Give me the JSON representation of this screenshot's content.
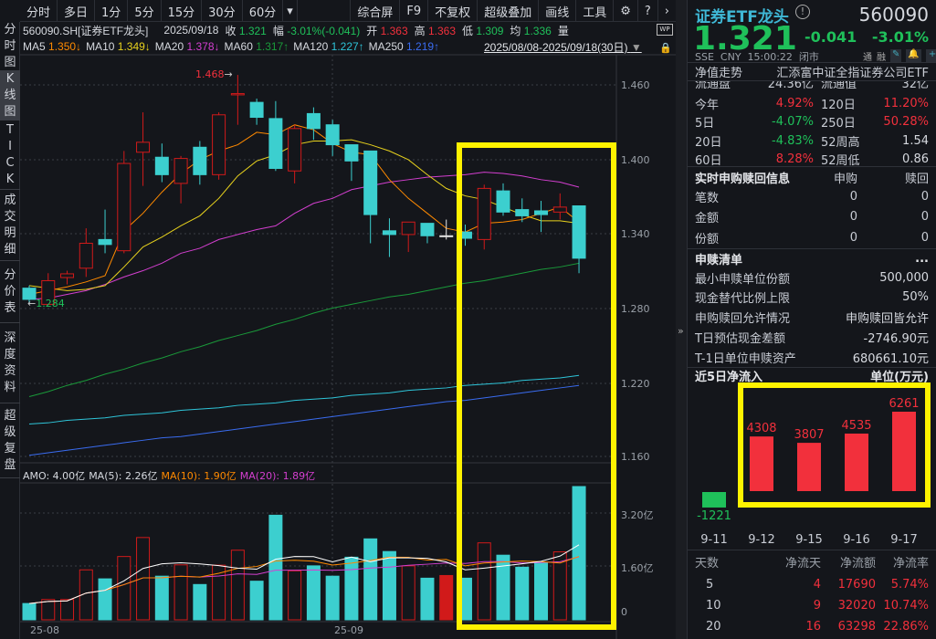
{
  "toolbar": {
    "left": [
      "分时",
      "多日",
      "1分",
      "5分",
      "15分",
      "30分",
      "60分"
    ],
    "more": "▾",
    "right": [
      "综合屏",
      "F9",
      "不复权",
      "超级叠加",
      "画线",
      "工具"
    ]
  },
  "side_tabs": [
    [
      "分",
      "时",
      "图"
    ],
    [
      "K",
      "线",
      "图"
    ],
    [
      "T",
      "I",
      "C",
      "K"
    ],
    [
      "成",
      "交",
      "明",
      "细"
    ],
    [
      "分",
      "价",
      "表"
    ],
    [
      "深",
      "度",
      "资",
      "料"
    ],
    [
      "超",
      "级",
      "复",
      "盘"
    ]
  ],
  "info": {
    "code": "560090.SH[证券ETF龙头]",
    "date": "2025/09/18",
    "close_label": "收",
    "close": "1.321",
    "chg_label": "幅",
    "chg": "-3.01%(-0.041)",
    "open_label": "开",
    "open": "1.363",
    "high_label": "高",
    "high": "1.363",
    "low_label": "低",
    "low": "1.309",
    "avg_label": "均",
    "avg": "1.336",
    "vol_label": "量"
  },
  "ma_legend": [
    {
      "label": "MA5",
      "value": "1.350↓",
      "color": "#ff8a00"
    },
    {
      "label": "MA10",
      "value": "1.349↓",
      "color": "#e8d21d"
    },
    {
      "label": "MA20",
      "value": "1.378↓",
      "color": "#d43fd0"
    },
    {
      "label": "MA60",
      "value": "1.317↑",
      "color": "#1a9a3a"
    },
    {
      "label": "MA120",
      "value": "1.227↑",
      "color": "#2ec4d8"
    },
    {
      "label": "MA250",
      "value": "1.219↑",
      "color": "#3a6cf0"
    }
  ],
  "range": "2025/08/08-2025/09/18(30日)",
  "price_axis": [
    "1.460",
    "1.400",
    "1.340",
    "1.280",
    "1.220",
    "1.160"
  ],
  "vol_axis": [
    "3.20亿",
    "1.60亿",
    "0"
  ],
  "date_axis": [
    "25-08",
    "25-09"
  ],
  "vol_legend": {
    "amo": "AMO: 4.00亿",
    "ma5": "MA(5): 2.26亿",
    "ma10": "MA(10): 1.90亿",
    "ma20": "MA(20): 1.89亿"
  },
  "annotations": {
    "high": "1.468",
    "low": "1.284"
  },
  "colors": {
    "up": "#d11a1a",
    "down": "#3ccfcf",
    "flat": "#e6e6e6",
    "highlight": "#fff200",
    "green": "#1fc05a",
    "red": "#f2303c"
  },
  "chart_data": {
    "type": "candlestick",
    "ohlc": [
      [
        1.297,
        1.288,
        1.299,
        1.284
      ],
      [
        1.284,
        1.303,
        1.309,
        1.284
      ],
      [
        1.3055,
        1.3085,
        1.311,
        1.3
      ],
      [
        1.313,
        1.333,
        1.345,
        1.306
      ],
      [
        1.336,
        1.332,
        1.36,
        1.325
      ],
      [
        1.327,
        1.397,
        1.407,
        1.325
      ],
      [
        1.406,
        1.414,
        1.438,
        1.379
      ],
      [
        1.402,
        1.388,
        1.413,
        1.382
      ],
      [
        1.381,
        1.401,
        1.403,
        1.365
      ],
      [
        1.41,
        1.388,
        1.415,
        1.38
      ],
      [
        1.388,
        1.436,
        1.438,
        1.384
      ],
      [
        1.452,
        1.453,
        1.468,
        1.428
      ],
      [
        1.446,
        1.434,
        1.449,
        1.428
      ],
      [
        1.433,
        1.393,
        1.447,
        1.391
      ],
      [
        1.391,
        1.425,
        1.428,
        1.381
      ],
      [
        1.437,
        1.425,
        1.442,
        1.416
      ],
      [
        1.428,
        1.412,
        1.432,
        1.403
      ],
      [
        1.412,
        1.399,
        1.412,
        1.383
      ],
      [
        1.407,
        1.356,
        1.407,
        1.333
      ],
      [
        1.343,
        1.34,
        1.353,
        1.322
      ],
      [
        1.34,
        1.35,
        1.35,
        1.326
      ],
      [
        1.349,
        1.339,
        1.349,
        1.333
      ],
      [
        1.339,
        1.339,
        1.352,
        1.336
      ],
      [
        1.342,
        1.337,
        1.348,
        1.331
      ],
      [
        1.336,
        1.377,
        1.38,
        1.328
      ],
      [
        1.375,
        1.358,
        1.381,
        1.355
      ],
      [
        1.36,
        1.355,
        1.369,
        1.35
      ],
      [
        1.359,
        1.356,
        1.367,
        1.342
      ],
      [
        1.358,
        1.362,
        1.373,
        1.352
      ],
      [
        1.363,
        1.321,
        1.363,
        1.309
      ]
    ],
    "ma5": [
      1.292,
      1.295,
      1.298,
      1.302,
      1.307,
      1.343,
      1.357,
      1.374,
      1.389,
      1.4,
      1.407,
      1.412,
      1.422,
      1.42,
      1.428,
      1.424,
      1.413,
      1.406,
      1.404,
      1.384,
      1.369,
      1.357,
      1.345,
      1.342,
      1.349,
      1.35,
      1.352,
      1.357,
      1.362,
      1.35
    ],
    "ma10": [
      1.299,
      1.297,
      1.295,
      1.296,
      1.299,
      1.314,
      1.33,
      1.338,
      1.347,
      1.355,
      1.369,
      1.387,
      1.399,
      1.404,
      1.412,
      1.415,
      1.415,
      1.416,
      1.412,
      1.407,
      1.4,
      1.388,
      1.377,
      1.371,
      1.368,
      1.362,
      1.356,
      1.351,
      1.351,
      1.349
    ],
    "ma20": [
      1.288,
      1.289,
      1.292,
      1.295,
      1.3,
      1.306,
      1.311,
      1.317,
      1.325,
      1.329,
      1.336,
      1.34,
      1.344,
      1.347,
      1.357,
      1.365,
      1.369,
      1.376,
      1.379,
      1.382,
      1.384,
      1.386,
      1.387,
      1.388,
      1.39,
      1.389,
      1.387,
      1.384,
      1.382,
      1.378
    ],
    "ma60": [
      1.21,
      1.214,
      1.219,
      1.223,
      1.228,
      1.232,
      1.237,
      1.241,
      1.246,
      1.25,
      1.255,
      1.259,
      1.263,
      1.268,
      1.272,
      1.277,
      1.281,
      1.284,
      1.287,
      1.29,
      1.292,
      1.295,
      1.298,
      1.301,
      1.303,
      1.306,
      1.309,
      1.312,
      1.314,
      1.317
    ],
    "ma120": [
      1.188,
      1.189,
      1.191,
      1.192,
      1.193,
      1.195,
      1.196,
      1.197,
      1.199,
      1.2,
      1.201,
      1.203,
      1.204,
      1.205,
      1.207,
      1.208,
      1.209,
      1.211,
      1.212,
      1.213,
      1.215,
      1.216,
      1.217,
      1.219,
      1.22,
      1.221,
      1.223,
      1.224,
      1.225,
      1.227
    ],
    "ma250": [
      1.163,
      1.165,
      1.167,
      1.169,
      1.171,
      1.173,
      1.175,
      1.177,
      1.178,
      1.18,
      1.182,
      1.184,
      1.186,
      1.188,
      1.19,
      1.192,
      1.194,
      1.196,
      1.198,
      1.2,
      1.202,
      1.204,
      1.206,
      1.207,
      1.209,
      1.211,
      1.213,
      1.215,
      1.217,
      1.219
    ],
    "volume_yi": [
      0.49,
      0.61,
      0.61,
      1.5,
      1.23,
      1.9,
      2.47,
      1.31,
      1.65,
      1.06,
      1.64,
      2.09,
      1.16,
      3.14,
      1.47,
      1.62,
      1.31,
      1.88,
      2.43,
      2.05,
      1.62,
      1.25,
      1.33,
      1.25,
      2.31,
      1.94,
      1.58,
      1.7,
      2.04,
      4.0
    ],
    "ylim": [
      1.15,
      1.47
    ],
    "vol_ylim": [
      0,
      4.1
    ]
  },
  "panel": {
    "name": "证券ETF龙头",
    "code": "560090",
    "price": "1.321",
    "change": "-0.041",
    "pct": "-3.01%",
    "meta": "SSE  CNY  15:00:22  闭市",
    "icons": [
      "通",
      "融"
    ],
    "nav_label": "净值走势",
    "fund_name": "汇添富中证全指证券公司ETF",
    "clipped": [
      "流通盘",
      "24.36亿",
      "流通值",
      "32亿"
    ],
    "stats": [
      [
        "今年",
        "4.92%",
        "120日",
        "11.20%"
      ],
      [
        "5日",
        "-4.07%",
        "250日",
        "50.28%"
      ],
      [
        "20日",
        "-4.83%",
        "52周高",
        "1.54"
      ],
      [
        "60日",
        "8.28%",
        "52周低",
        "0.86"
      ]
    ],
    "realtime": {
      "title": "实时申购赎回信息",
      "cols": [
        "申购",
        "赎回"
      ],
      "rows": [
        [
          "笔数",
          "0",
          "0"
        ],
        [
          "金额",
          "0",
          "0"
        ],
        [
          "份额",
          "0",
          "0"
        ]
      ]
    },
    "list": {
      "title": "申赎清单",
      "more": "...",
      "rows": [
        [
          "最小申赎单位份额",
          "500,000"
        ],
        [
          "现金替代比例上限",
          "50%"
        ],
        [
          "申购赎回允许情况",
          "申购赎回皆允许"
        ],
        [
          "T日预估现金差额",
          "-2746.90元"
        ],
        [
          "T-1日单位申赎资产",
          "680661.10元"
        ]
      ]
    },
    "flow": {
      "title": "近5日净流入",
      "unit": "单位(万元)",
      "dates": [
        "9-11",
        "9-12",
        "9-15",
        "9-16",
        "9-17"
      ],
      "values": [
        -1221,
        4308,
        3807,
        4535,
        6261
      ],
      "labels": [
        "-1221",
        "4308",
        "3807",
        "4535",
        "6261"
      ]
    },
    "flow_table": {
      "header": [
        "天数",
        "净流天",
        "净流额",
        "净流率"
      ],
      "rows": [
        [
          "5",
          "4",
          "17690",
          "5.74%"
        ],
        [
          "10",
          "9",
          "32020",
          "10.74%"
        ],
        [
          "20",
          "16",
          "63298",
          "22.86%"
        ]
      ]
    },
    "expand": "»"
  }
}
